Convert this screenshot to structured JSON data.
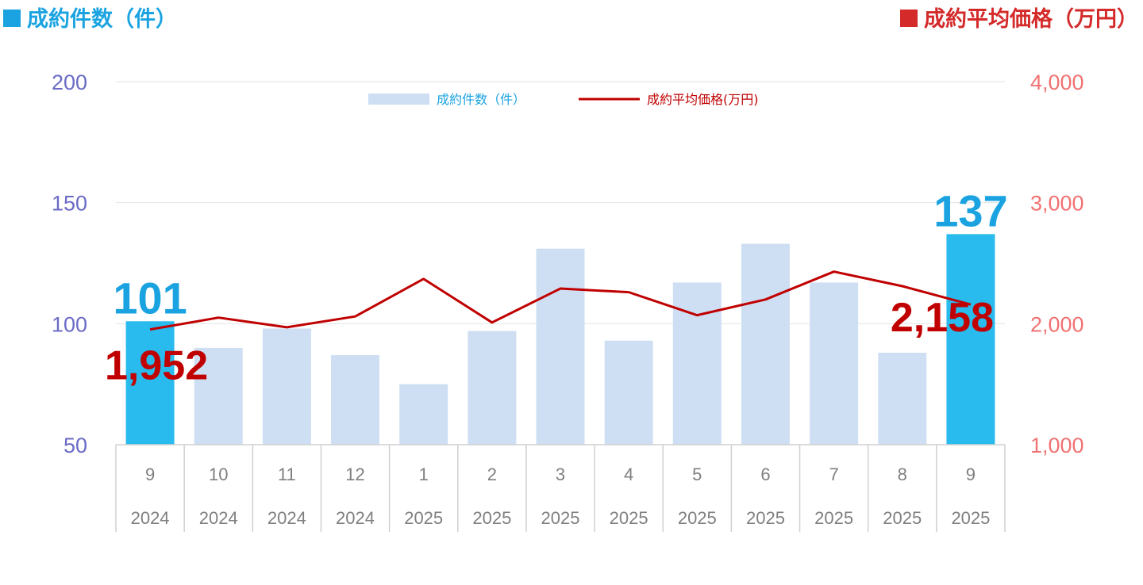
{
  "header": {
    "left_title": "成約件数（件）",
    "right_title": "成約平均価格（万円）"
  },
  "colors": {
    "bar": "#cfdff3",
    "bar_highlight": "#29bbee",
    "line": "#c00000",
    "left_axis_text": "#6b6bc6",
    "right_axis_text": "#f07272",
    "count_label": "#1aa3e0",
    "price_label": "#c00000"
  },
  "chart_data": {
    "type": "bar",
    "categories": [
      "9",
      "10",
      "11",
      "12",
      "1",
      "2",
      "3",
      "4",
      "5",
      "6",
      "7",
      "8",
      "9"
    ],
    "category_years": [
      "2024",
      "2024",
      "2024",
      "2024",
      "2025",
      "2025",
      "2025",
      "2025",
      "2025",
      "2025",
      "2025",
      "2025",
      "2025"
    ],
    "series": [
      {
        "name": "成約件数（件）",
        "type": "bar",
        "axis": "left",
        "values": [
          101,
          90,
          98,
          87,
          75,
          97,
          131,
          93,
          117,
          133,
          117,
          88,
          137
        ]
      },
      {
        "name": "成約平均価格(万円)",
        "type": "line",
        "axis": "right",
        "values": [
          1952,
          2050,
          1970,
          2060,
          2370,
          2010,
          2290,
          2260,
          2070,
          2200,
          2430,
          2310,
          2158
        ]
      }
    ],
    "highlighted": [
      0,
      12
    ],
    "left_axis": {
      "ylim": [
        50,
        200
      ],
      "ticks": [
        "50",
        "100",
        "150",
        "200"
      ]
    },
    "right_axis": {
      "ylim": [
        1000,
        4000
      ],
      "ticks": [
        "1,000",
        "2,000",
        "3,000",
        "4,000"
      ]
    },
    "annotations": [
      {
        "series": 0,
        "index": 0,
        "text": "101"
      },
      {
        "series": 0,
        "index": 12,
        "text": "137"
      },
      {
        "series": 1,
        "index": 0,
        "text": "1,952"
      },
      {
        "series": 1,
        "index": 12,
        "text": "2,158"
      }
    ],
    "grid": true,
    "legend": "top-center"
  }
}
